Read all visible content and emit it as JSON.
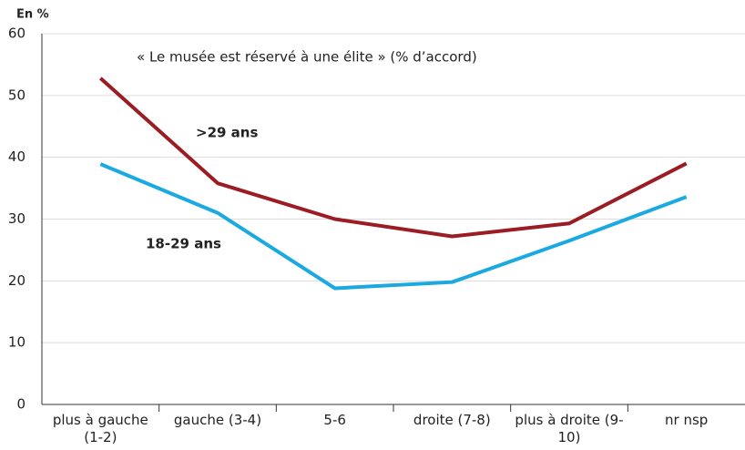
{
  "chart_data": {
    "type": "line",
    "title": "« Le musée est réservé à une élite » (% d’accord)",
    "y_axis_label": "En %",
    "categories": [
      "plus à gauche (1-2)",
      "gauche (3-4)",
      "5-6",
      "droite (7-8)",
      "plus à droite (9-10)",
      "nr nsp"
    ],
    "series": [
      {
        "name": ">29 ans",
        "color": "#9b1c22",
        "values": [
          52.8,
          35.8,
          30,
          27.2,
          29.3,
          39
        ]
      },
      {
        "name": "18-29 ans",
        "color": "#1aa9e0",
        "values": [
          38.9,
          31,
          18.8,
          19.8,
          26.5,
          33.6
        ]
      }
    ],
    "ylim": [
      0,
      60
    ],
    "yticks": [
      0,
      10,
      20,
      30,
      40,
      50,
      60
    ],
    "grid": true
  }
}
